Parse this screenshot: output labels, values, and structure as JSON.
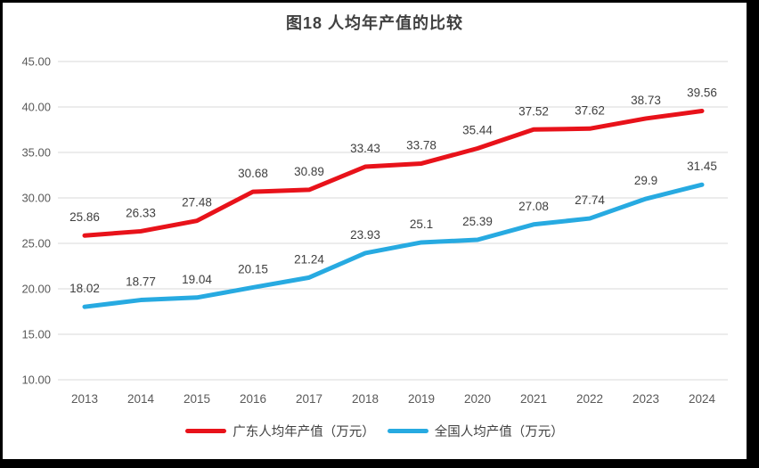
{
  "chart_data": {
    "type": "line",
    "title": "图18 人均年产值的比较",
    "categories": [
      "2013",
      "2014",
      "2015",
      "2016",
      "2017",
      "2018",
      "2019",
      "2020",
      "2021",
      "2022",
      "2023",
      "2024"
    ],
    "series": [
      {
        "name": "广东人均年产值（万元）",
        "color": "#e8121a",
        "values": [
          25.86,
          26.33,
          27.48,
          30.68,
          30.89,
          33.43,
          33.78,
          35.44,
          37.52,
          37.62,
          38.73,
          39.56
        ],
        "labels": [
          "25.86",
          "26.33",
          "27.48",
          "30.68",
          "30.89",
          "33.43",
          "33.78",
          "35.44",
          "37.52",
          "37.62",
          "38.73",
          "39.56"
        ]
      },
      {
        "name": "全国人均产值（万元）",
        "color": "#27aae1",
        "values": [
          18.02,
          18.77,
          19.04,
          20.15,
          21.24,
          23.93,
          25.1,
          25.39,
          27.08,
          27.74,
          29.9,
          31.45
        ],
        "labels": [
          "18.02",
          "18.77",
          "19.04",
          "20.15",
          "21.24",
          "23.93",
          "25.1",
          "25.39",
          "27.08",
          "27.74",
          "29.9",
          "31.45"
        ]
      }
    ],
    "ylim": [
      10,
      45
    ],
    "yticks": [
      {
        "value": 10,
        "label": "10.00"
      },
      {
        "value": 15,
        "label": "15.00"
      },
      {
        "value": 20,
        "label": "20.00"
      },
      {
        "value": 25,
        "label": "25.00"
      },
      {
        "value": 30,
        "label": "30.00"
      },
      {
        "value": 35,
        "label": "35.00"
      },
      {
        "value": 40,
        "label": "40.00"
      },
      {
        "value": 45,
        "label": "45.00"
      }
    ],
    "xlabel": "",
    "ylabel": "",
    "grid": true,
    "legend_position": "bottom",
    "colors": {
      "gridline": "#d9d9d9",
      "axis_label": "#595959",
      "data_label": "#3f3f3f",
      "title": "#404040",
      "frame_border": "#000000",
      "background": "#ffffff"
    }
  }
}
